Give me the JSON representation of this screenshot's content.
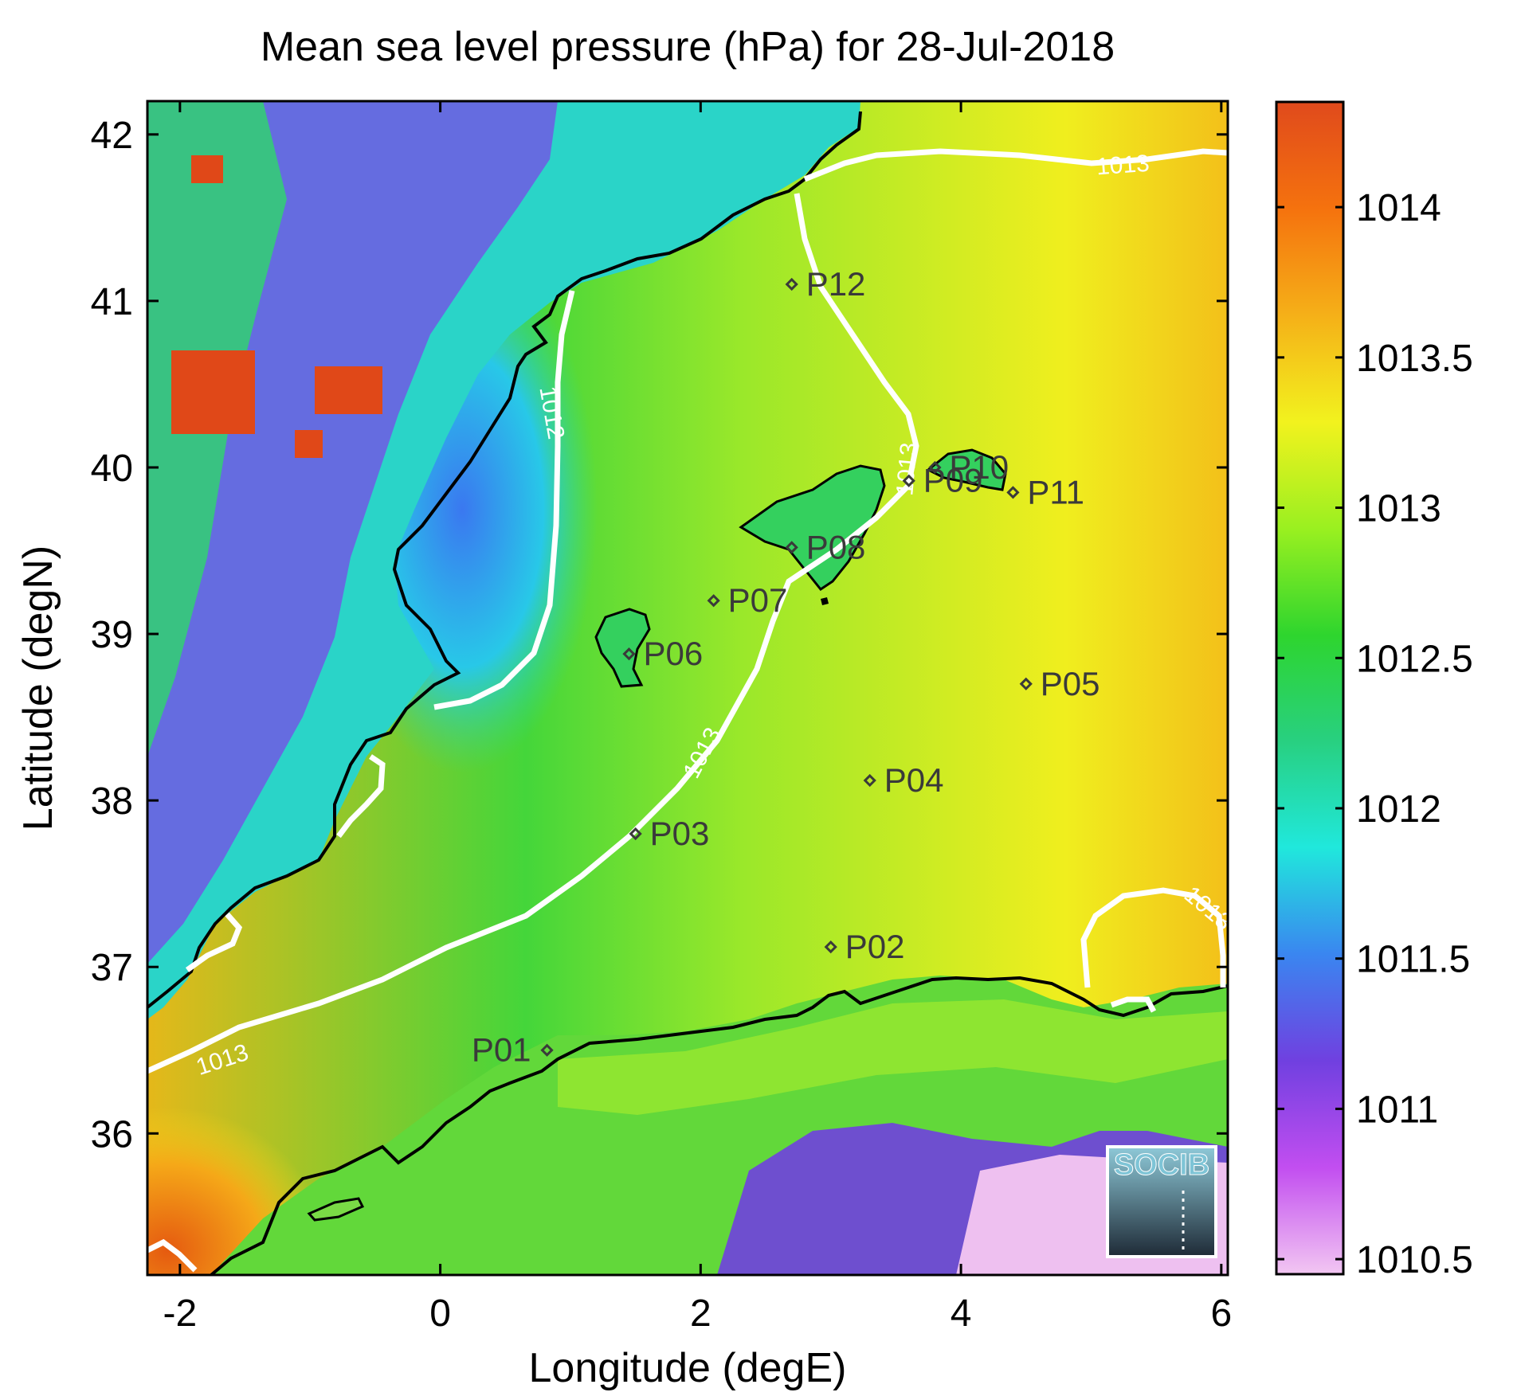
{
  "title": "Mean sea level pressure (hPa) for 28-Jul-2018",
  "xlabel": "Longitude (degE)",
  "ylabel": "Latitude (degN)",
  "xlim": [
    -2.25,
    6.05
  ],
  "ylim": [
    35.15,
    42.2
  ],
  "xticks": [
    -2,
    0,
    2,
    4,
    6
  ],
  "xtick_labels": [
    "-2",
    "0",
    "2",
    "4",
    "6"
  ],
  "yticks": [
    36,
    37,
    38,
    39,
    40,
    41,
    42
  ],
  "ytick_labels": [
    "36",
    "37",
    "38",
    "39",
    "40",
    "41",
    "42"
  ],
  "colorbar": {
    "min": 1010.45,
    "max": 1014.35,
    "ticks": [
      1010.5,
      1011,
      1011.5,
      1012,
      1012.5,
      1013,
      1013.5,
      1014
    ],
    "tick_labels": [
      "1010.5",
      "1011",
      "1011.5",
      "1012",
      "1012.5",
      "1013",
      "1013.5",
      "1014"
    ],
    "colormap": [
      "#f2c6f2",
      "#c24ef0",
      "#7040e0",
      "#3a86f0",
      "#20e8dc",
      "#28d080",
      "#2ed52e",
      "#9af020",
      "#f2f21e",
      "#f5b018",
      "#f5720e",
      "#e04a1c"
    ]
  },
  "contour_labels": [
    "1012",
    "1013",
    "1013",
    "1013",
    "1013",
    "1013"
  ],
  "stations": [
    {
      "name": "P01",
      "lon": 0.82,
      "lat": 36.5
    },
    {
      "name": "P02",
      "lon": 3.0,
      "lat": 37.12
    },
    {
      "name": "P03",
      "lon": 1.5,
      "lat": 37.8
    },
    {
      "name": "P04",
      "lon": 3.3,
      "lat": 38.12
    },
    {
      "name": "P05",
      "lon": 4.5,
      "lat": 38.7
    },
    {
      "name": "P06",
      "lon": 1.45,
      "lat": 38.88
    },
    {
      "name": "P07",
      "lon": 2.1,
      "lat": 39.2
    },
    {
      "name": "P08",
      "lon": 2.7,
      "lat": 39.52
    },
    {
      "name": "P09",
      "lon": 3.6,
      "lat": 39.92
    },
    {
      "name": "P10",
      "lon": 3.8,
      "lat": 40.0
    },
    {
      "name": "P11",
      "lon": 4.4,
      "lat": 39.85
    },
    {
      "name": "P12",
      "lon": 2.7,
      "lat": 41.1
    }
  ],
  "logo": {
    "text": "SOCIB"
  },
  "colors": {
    "contour": "#ffffff",
    "coastline": "#000000",
    "station": "#3a3a3a"
  }
}
